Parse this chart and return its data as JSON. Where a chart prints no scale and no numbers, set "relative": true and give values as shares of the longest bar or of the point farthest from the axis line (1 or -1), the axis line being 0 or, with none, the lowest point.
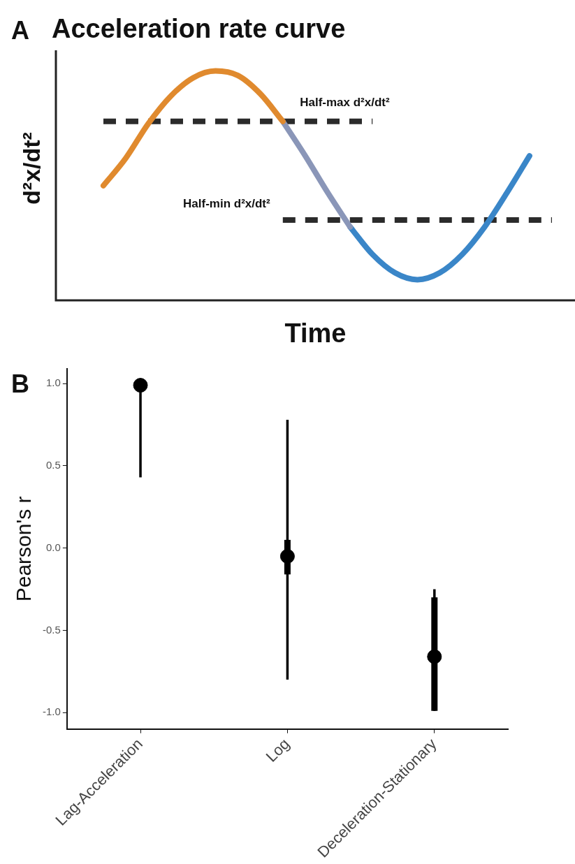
{
  "chart_data": [
    {
      "type": "line",
      "relative": true,
      "title": "Acceleration rate curve",
      "xlabel": "Time",
      "ylabel": "d²x/dt²",
      "categories": [
        null,
        null,
        null,
        null,
        null,
        null,
        null,
        null,
        null,
        null,
        null,
        null,
        null,
        null,
        null,
        null,
        null,
        null,
        null,
        null,
        null
      ],
      "grid": false,
      "legend": false,
      "annotations": [
        "A",
        "Half-max d²x/dt²",
        "Half-min d²x/dt²"
      ],
      "series": [
        {
          "color": "#e08a2e",
          "values": [
            0.5,
            0.62,
            0.77,
            0.89,
            0.97,
            1.0,
            0.98,
            0.9,
            0.78,
            null,
            null,
            null,
            null,
            null,
            null,
            null,
            null,
            null,
            null,
            null,
            null
          ]
        },
        {
          "color": "#8a96b8",
          "values": [
            null,
            null,
            null,
            null,
            null,
            null,
            null,
            null,
            0.78,
            0.63,
            0.47,
            0.32,
            null,
            null,
            null,
            null,
            null,
            null,
            null,
            null,
            null
          ]
        },
        {
          "color": "#3a86c8",
          "values": [
            null,
            null,
            null,
            null,
            null,
            null,
            null,
            null,
            null,
            null,
            null,
            0.32,
            0.2,
            0.12,
            0.09,
            0.12,
            0.2,
            0.32,
            0.47,
            0.63,
            null
          ]
        },
        {
          "color": "#2b2b2b",
          "line_style": "dashed",
          "values": [
            0.78,
            0.78,
            0.78,
            0.78,
            0.78,
            0.78,
            0.78,
            0.78,
            0.78,
            0.78,
            0.78,
            0.78,
            0.78,
            null,
            null,
            null,
            null,
            null,
            null,
            null,
            null
          ]
        },
        {
          "color": "#2b2b2b",
          "line_style": "dashed",
          "values": [
            null,
            null,
            null,
            null,
            null,
            null,
            null,
            null,
            0.35,
            0.35,
            0.35,
            0.35,
            0.35,
            0.35,
            0.35,
            0.35,
            0.35,
            0.35,
            0.35,
            0.35,
            0.35
          ]
        }
      ]
    },
    {
      "type": "box",
      "ylabel": "Pearson's r",
      "categories": [
        "Lag-Acceleration",
        "Log",
        "Deceleration-Stationary"
      ],
      "ylim": [
        -1.1,
        1.09
      ],
      "yticks": [
        {
          "value": 1,
          "label": "1.0"
        },
        {
          "value": 0.5,
          "label": "0.5"
        },
        {
          "value": 0,
          "label": "0.0"
        },
        {
          "value": -0.5,
          "label": "-0.5"
        },
        {
          "value": -1,
          "label": "-1.0"
        }
      ],
      "grid": false,
      "legend": false,
      "annotations": [
        "B"
      ],
      "series": [
        {
          "color": "#000000",
          "boxes": [
            {
              "low": 0.43,
              "q1": 0.96,
              "median": 0.99,
              "q3": 1.0,
              "high": 1.0
            },
            {
              "low": -0.8,
              "q1": -0.16,
              "median": -0.05,
              "q3": 0.05,
              "high": 0.78
            },
            {
              "low": -0.99,
              "q1": -0.99,
              "median": -0.66,
              "q3": -0.3,
              "high": -0.25
            }
          ]
        }
      ]
    }
  ]
}
